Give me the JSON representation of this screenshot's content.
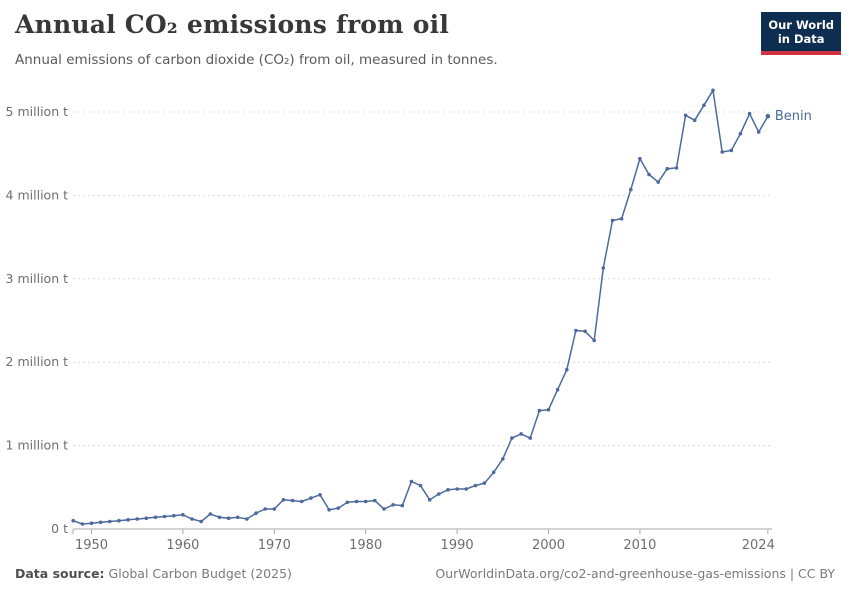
{
  "header": {
    "title": "Annual CO₂ emissions from oil",
    "subtitle": "Annual emissions of carbon dioxide (CO₂) from oil, measured in tonnes.",
    "logo": {
      "line1": "Our World",
      "line2": "in Data",
      "bg_color": "#0d2d51",
      "accent_color": "#d0333f"
    }
  },
  "chart_data": {
    "type": "line",
    "title": "Annual CO₂ emissions from oil",
    "unit": "tonnes",
    "grid": "horizontal-dashed",
    "legend_position": "end-of-line-label",
    "x_axis": {
      "range": [
        1948,
        2024.5
      ],
      "ticks": [
        1950,
        1960,
        1970,
        1980,
        1990,
        2000,
        2010,
        2024
      ]
    },
    "y_axis": {
      "range": [
        0,
        5.4
      ],
      "unit": "million tonnes",
      "tick_values": [
        0,
        1,
        2,
        3,
        4,
        5
      ],
      "tick_labels": [
        "0 t",
        "1 million t",
        "2 million t",
        "3 million t",
        "4 million t",
        "5 million t"
      ]
    },
    "series": [
      {
        "name": "Benin",
        "color": "#4c6a9c",
        "years": [
          1948,
          1949,
          1950,
          1951,
          1952,
          1953,
          1954,
          1955,
          1956,
          1957,
          1958,
          1959,
          1960,
          1961,
          1962,
          1963,
          1964,
          1965,
          1966,
          1967,
          1968,
          1969,
          1970,
          1971,
          1972,
          1973,
          1974,
          1975,
          1976,
          1977,
          1978,
          1979,
          1980,
          1981,
          1982,
          1983,
          1984,
          1985,
          1986,
          1987,
          1988,
          1989,
          1990,
          1991,
          1992,
          1993,
          1994,
          1995,
          1996,
          1997,
          1998,
          1999,
          2000,
          2001,
          2002,
          2003,
          2004,
          2005,
          2006,
          2007,
          2008,
          2009,
          2010,
          2011,
          2012,
          2013,
          2014,
          2015,
          2016,
          2017,
          2018,
          2019,
          2020,
          2021,
          2022,
          2023,
          2024
        ],
        "values_million_t": [
          0.1,
          0.06,
          0.07,
          0.08,
          0.09,
          0.1,
          0.11,
          0.12,
          0.13,
          0.14,
          0.15,
          0.16,
          0.17,
          0.12,
          0.09,
          0.18,
          0.14,
          0.13,
          0.14,
          0.12,
          0.19,
          0.24,
          0.24,
          0.35,
          0.34,
          0.33,
          0.37,
          0.41,
          0.23,
          0.25,
          0.32,
          0.33,
          0.33,
          0.34,
          0.24,
          0.29,
          0.28,
          0.57,
          0.52,
          0.35,
          0.42,
          0.47,
          0.48,
          0.48,
          0.52,
          0.55,
          0.68,
          0.84,
          1.09,
          1.14,
          1.09,
          1.42,
          1.43,
          1.67,
          1.91,
          2.38,
          2.37,
          2.26,
          3.13,
          3.7,
          3.72,
          4.07,
          4.44,
          4.25,
          4.16,
          4.32,
          4.33,
          4.96,
          4.9,
          5.08,
          5.26,
          4.52,
          4.54,
          4.74,
          4.98,
          4.76,
          4.95
        ]
      }
    ]
  },
  "footer": {
    "source_label": "Data source:",
    "source_value": "Global Carbon Budget (2025)",
    "citation": "OurWorldinData.org/co2-and-greenhouse-gas-emissions | CC BY"
  },
  "colors": {
    "line": "#4c6a9c",
    "gridline": "#dcdcdc",
    "axis": "#a8a8a8",
    "axis_text": "#6e6e6e"
  }
}
